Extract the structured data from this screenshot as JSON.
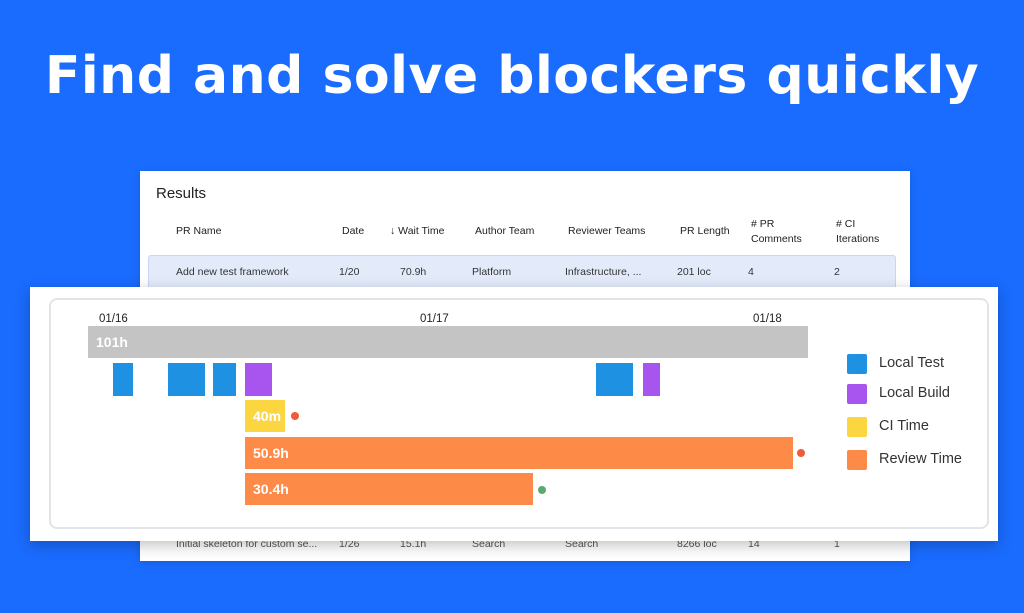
{
  "hero": {
    "title": "Find and solve blockers quickly"
  },
  "results": {
    "title": "Results",
    "columns": {
      "pr_name": "PR Name",
      "date": "Date",
      "wait_time": "Wait Time",
      "author_team": "Author Team",
      "reviewer_teams": "Reviewer Teams",
      "pr_length": "PR Length",
      "pr_comments_1": "# PR",
      "pr_comments_2": "Comments",
      "ci_1": "# CI",
      "ci_2": "Iterations",
      "sort_icon": "arrow-down-icon"
    },
    "rows": [
      {
        "pr_name": "Add new test framework",
        "date": "1/20",
        "wait_time": "70.9h",
        "author_team": "Platform",
        "reviewer_teams": "Infrastructure, ...",
        "pr_length": "201 loc",
        "pr_comments": "4",
        "ci_iterations": "2"
      },
      {
        "pr_name": "Initial skeleton for custom se...",
        "date": "1/26",
        "wait_time": "15.1h",
        "author_team": "Search",
        "reviewer_teams": "Search",
        "pr_length": "8266 loc",
        "pr_comments": "14",
        "ci_iterations": "1"
      }
    ]
  },
  "timeline": {
    "ticks": [
      "01/16",
      "01/17",
      "01/18"
    ],
    "total_label": "101h",
    "ci_label": "40m",
    "review_label_1": "50.9h",
    "review_label_2": "30.4h",
    "legend": {
      "local_test": "Local Test",
      "local_build": "Local Build",
      "ci_time": "CI Time",
      "review_time": "Review Time"
    },
    "colors": {
      "total": "#c4c4c4",
      "local_test": "#1e91e3",
      "local_build": "#a855ef",
      "ci_time": "#fcd641",
      "review_time": "#fe8a48",
      "dot_red": "#ef5b3b",
      "dot_green": "#5aaa6e"
    }
  }
}
